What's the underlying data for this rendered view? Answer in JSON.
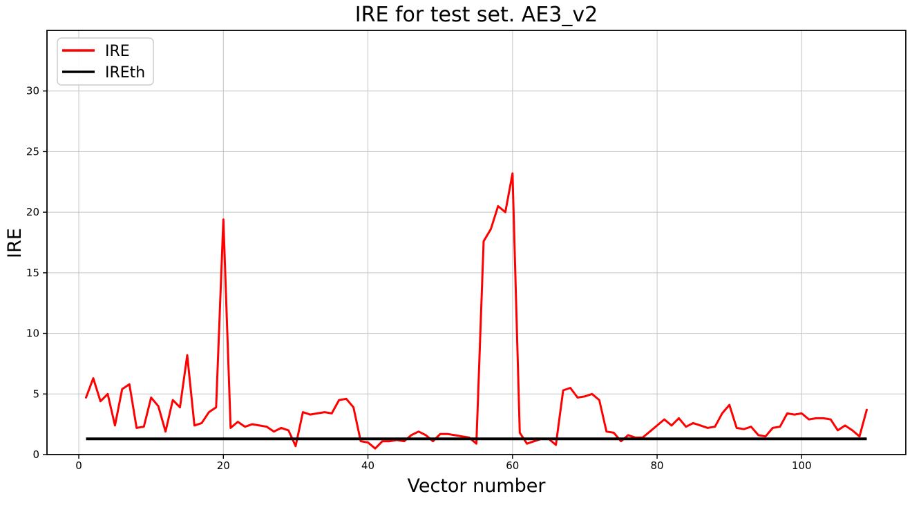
{
  "figure": {
    "title": "IRE for test set. AE3_v2",
    "xlabel": "Vector number",
    "ylabel": "IRE"
  },
  "legend": {
    "position": "upper left",
    "items": [
      {
        "label": "IRE",
        "color": "#ff0000"
      },
      {
        "label": "IREth",
        "color": "#000000"
      }
    ]
  },
  "chart_data": {
    "type": "line",
    "title": "IRE for test set. AE3_v2",
    "xlabel": "Vector number",
    "ylabel": "IRE",
    "grid": true,
    "legend_position": "upper left",
    "xlim": [
      -4.4,
      114.4
    ],
    "ylim": [
      0,
      35
    ],
    "xticks": [
      0,
      20,
      40,
      60,
      80,
      100
    ],
    "yticks": [
      0,
      5,
      10,
      15,
      20,
      25,
      30
    ],
    "x": [
      1,
      2,
      3,
      4,
      5,
      6,
      7,
      8,
      9,
      10,
      11,
      12,
      13,
      14,
      15,
      16,
      17,
      18,
      19,
      20,
      21,
      22,
      23,
      24,
      25,
      26,
      27,
      28,
      29,
      30,
      31,
      32,
      33,
      34,
      35,
      36,
      37,
      38,
      39,
      40,
      41,
      42,
      43,
      44,
      45,
      46,
      47,
      48,
      49,
      50,
      51,
      52,
      53,
      54,
      55,
      56,
      57,
      58,
      59,
      60,
      61,
      62,
      63,
      64,
      65,
      66,
      67,
      68,
      69,
      70,
      71,
      72,
      73,
      74,
      75,
      76,
      77,
      78,
      79,
      80,
      81,
      82,
      83,
      84,
      85,
      86,
      87,
      88,
      89,
      90,
      91,
      92,
      93,
      94,
      95,
      96,
      97,
      98,
      99,
      100,
      101,
      102,
      103,
      104,
      105,
      106,
      107,
      108,
      109
    ],
    "series": [
      {
        "name": "IRE",
        "color": "#ff0000",
        "values": [
          4.7,
          6.3,
          4.4,
          5.0,
          2.4,
          5.4,
          5.8,
          2.2,
          2.3,
          4.7,
          4.0,
          1.9,
          4.5,
          3.9,
          8.2,
          2.4,
          2.6,
          3.5,
          3.9,
          19.4,
          2.2,
          2.7,
          2.3,
          2.5,
          2.4,
          2.3,
          1.9,
          2.2,
          2.0,
          0.7,
          3.5,
          3.3,
          3.4,
          3.5,
          3.4,
          4.5,
          4.6,
          3.9,
          1.1,
          1.0,
          0.5,
          1.1,
          1.1,
          1.2,
          1.1,
          1.6,
          1.9,
          1.6,
          1.1,
          1.7,
          1.7,
          1.6,
          1.5,
          1.4,
          0.9,
          17.6,
          18.6,
          20.5,
          20.0,
          23.2,
          1.8,
          0.9,
          1.1,
          1.3,
          1.3,
          0.8,
          5.3,
          5.5,
          4.7,
          4.8,
          5.0,
          4.5,
          1.9,
          1.8,
          1.1,
          1.6,
          1.4,
          1.4,
          1.9,
          2.4,
          2.9,
          2.4,
          3.0,
          2.3,
          2.6,
          2.4,
          2.2,
          2.3,
          3.4,
          4.1,
          2.2,
          2.1,
          2.3,
          1.6,
          1.5,
          2.2,
          2.3,
          3.4,
          3.3,
          3.4,
          2.9,
          3.0,
          3.0,
          2.9,
          2.0,
          2.4,
          2.0,
          1.5,
          3.7
        ]
      },
      {
        "name": "IREth",
        "color": "#000000",
        "constant": 1.3
      }
    ]
  }
}
